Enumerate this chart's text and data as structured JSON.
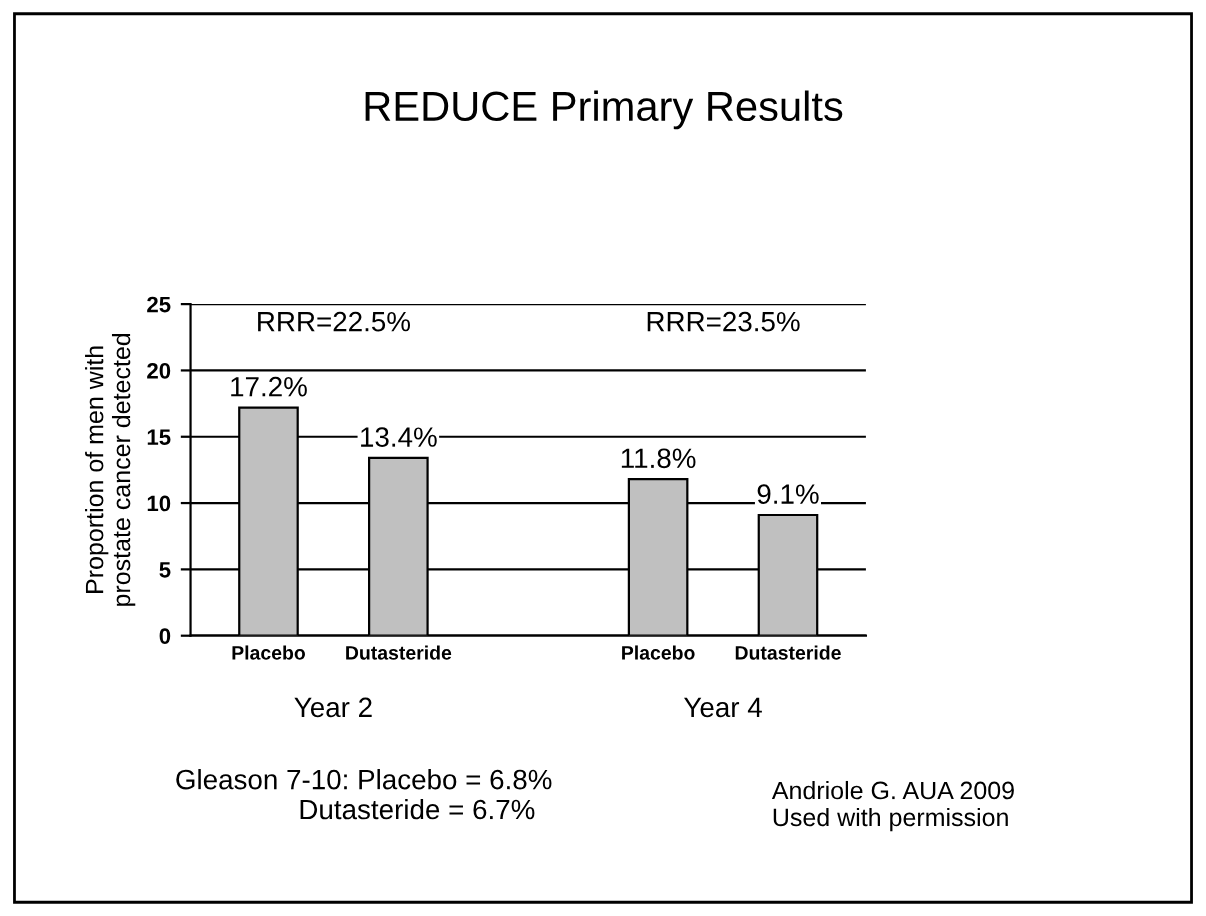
{
  "chart_data": {
    "type": "bar",
    "title": "REDUCE Primary Results",
    "ylabel": "Proportion of men with\nprostate cancer detected",
    "categories": [
      "Placebo",
      "Dutasteride",
      null,
      "Placebo",
      "Dutasteride"
    ],
    "values": [
      17.2,
      13.4,
      null,
      11.8,
      9.1
    ],
    "value_labels": [
      "17.2%",
      "13.4%",
      null,
      "11.8%",
      "9.1%"
    ],
    "color": "#c0c0c0",
    "ylim": [
      0,
      25
    ],
    "yticks": [
      0,
      5,
      10,
      15,
      20,
      25
    ],
    "grid": "y",
    "legend": false,
    "annotations": [
      "RRR=22.5%",
      "RRR=23.5%",
      "Year 2",
      "Year 4",
      "Gleason 7-10: Placebo = 6.8%\n                Dutasteride = 6.7%",
      "Andriole G. AUA 2009\nUsed with permission"
    ]
  }
}
